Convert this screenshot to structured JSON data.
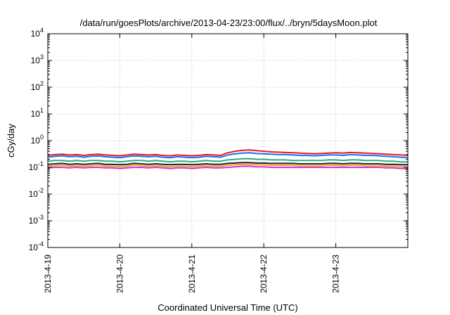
{
  "chart_data": {
    "type": "line",
    "title": "/data/run/goesPlots/archive/2013-04-23/23:00/flux/../bryn/5daysMoon.plot",
    "xlabel": "Coordinated Universal Time (UTC)",
    "ylabel": "cGy/day",
    "yscale": "log",
    "ylim": [
      0.0001,
      10000
    ],
    "xlim": [
      0,
      5
    ],
    "x_ticks": [
      {
        "value": 0,
        "label": "2013-4-19"
      },
      {
        "value": 1,
        "label": "2013-4-20"
      },
      {
        "value": 2,
        "label": "2013-4-21"
      },
      {
        "value": 3,
        "label": "2013-4-22"
      },
      {
        "value": 4,
        "label": "2013-4-23"
      }
    ],
    "y_ticks": [
      {
        "value": 0.0001,
        "base": "10",
        "exp": "-4"
      },
      {
        "value": 0.001,
        "base": "10",
        "exp": "-3"
      },
      {
        "value": 0.01,
        "base": "10",
        "exp": "-2"
      },
      {
        "value": 0.1,
        "base": "10",
        "exp": "-1"
      },
      {
        "value": 1,
        "base": "10",
        "exp": "0"
      },
      {
        "value": 10,
        "base": "10",
        "exp": "1"
      },
      {
        "value": 100,
        "base": "10",
        "exp": "2"
      },
      {
        "value": 1000,
        "base": "10",
        "exp": "3"
      },
      {
        "value": 10000,
        "base": "10",
        "exp": "4"
      }
    ],
    "grid": true,
    "x": [
      0,
      0.1,
      0.2,
      0.3,
      0.4,
      0.5,
      0.6,
      0.7,
      0.8,
      0.9,
      1.0,
      1.1,
      1.2,
      1.3,
      1.4,
      1.5,
      1.6,
      1.7,
      1.8,
      1.9,
      2.0,
      2.1,
      2.2,
      2.3,
      2.4,
      2.5,
      2.6,
      2.7,
      2.8,
      2.9,
      3.0,
      3.1,
      3.2,
      3.3,
      3.4,
      3.5,
      3.6,
      3.7,
      3.8,
      3.9,
      4.0,
      4.1,
      4.2,
      4.3,
      4.4,
      4.5,
      4.6,
      4.7,
      4.8,
      4.9,
      5.0
    ],
    "series": [
      {
        "color": "#e41a1c",
        "values": [
          0.28,
          0.3,
          0.31,
          0.29,
          0.3,
          0.28,
          0.3,
          0.31,
          0.29,
          0.28,
          0.27,
          0.29,
          0.31,
          0.3,
          0.29,
          0.3,
          0.28,
          0.27,
          0.29,
          0.28,
          0.27,
          0.28,
          0.3,
          0.29,
          0.28,
          0.35,
          0.4,
          0.43,
          0.45,
          0.42,
          0.4,
          0.38,
          0.37,
          0.36,
          0.35,
          0.34,
          0.33,
          0.32,
          0.33,
          0.34,
          0.35,
          0.34,
          0.36,
          0.35,
          0.34,
          0.33,
          0.32,
          0.31,
          0.3,
          0.29,
          0.28
        ]
      },
      {
        "color": "#1f6fe8",
        "values": [
          0.24,
          0.26,
          0.27,
          0.25,
          0.26,
          0.24,
          0.26,
          0.27,
          0.25,
          0.24,
          0.23,
          0.25,
          0.27,
          0.26,
          0.25,
          0.26,
          0.24,
          0.23,
          0.25,
          0.24,
          0.23,
          0.24,
          0.26,
          0.25,
          0.24,
          0.29,
          0.32,
          0.34,
          0.35,
          0.33,
          0.32,
          0.31,
          0.3,
          0.3,
          0.29,
          0.28,
          0.28,
          0.27,
          0.28,
          0.29,
          0.29,
          0.28,
          0.3,
          0.29,
          0.28,
          0.28,
          0.27,
          0.26,
          0.25,
          0.24,
          0.23
        ]
      },
      {
        "color": "#2ab07f",
        "values": [
          0.17,
          0.18,
          0.18,
          0.17,
          0.18,
          0.17,
          0.18,
          0.18,
          0.17,
          0.17,
          0.16,
          0.17,
          0.18,
          0.18,
          0.17,
          0.18,
          0.17,
          0.16,
          0.17,
          0.17,
          0.16,
          0.17,
          0.18,
          0.17,
          0.17,
          0.19,
          0.2,
          0.21,
          0.21,
          0.2,
          0.2,
          0.19,
          0.19,
          0.19,
          0.18,
          0.18,
          0.18,
          0.18,
          0.18,
          0.19,
          0.19,
          0.18,
          0.19,
          0.19,
          0.18,
          0.18,
          0.18,
          0.17,
          0.17,
          0.16,
          0.16
        ]
      },
      {
        "color": "#222222",
        "values": [
          0.13,
          0.135,
          0.14,
          0.13,
          0.135,
          0.13,
          0.135,
          0.14,
          0.13,
          0.13,
          0.125,
          0.13,
          0.14,
          0.135,
          0.13,
          0.135,
          0.13,
          0.125,
          0.13,
          0.13,
          0.125,
          0.13,
          0.135,
          0.13,
          0.13,
          0.14,
          0.145,
          0.15,
          0.15,
          0.145,
          0.145,
          0.14,
          0.14,
          0.14,
          0.14,
          0.135,
          0.135,
          0.135,
          0.135,
          0.14,
          0.14,
          0.135,
          0.14,
          0.14,
          0.135,
          0.135,
          0.135,
          0.13,
          0.13,
          0.125,
          0.125
        ]
      },
      {
        "color": "#f2a03a",
        "values": [
          0.11,
          0.115,
          0.12,
          0.11,
          0.115,
          0.11,
          0.115,
          0.12,
          0.11,
          0.11,
          0.105,
          0.11,
          0.12,
          0.115,
          0.11,
          0.115,
          0.11,
          0.105,
          0.11,
          0.11,
          0.105,
          0.11,
          0.115,
          0.11,
          0.11,
          0.12,
          0.125,
          0.13,
          0.13,
          0.125,
          0.125,
          0.12,
          0.12,
          0.12,
          0.12,
          0.115,
          0.115,
          0.115,
          0.115,
          0.12,
          0.12,
          0.115,
          0.12,
          0.12,
          0.115,
          0.115,
          0.115,
          0.11,
          0.11,
          0.105,
          0.105
        ]
      },
      {
        "color": "#e030d0",
        "values": [
          0.095,
          0.1,
          0.1,
          0.095,
          0.1,
          0.095,
          0.1,
          0.1,
          0.095,
          0.095,
          0.09,
          0.095,
          0.1,
          0.1,
          0.095,
          0.1,
          0.095,
          0.09,
          0.095,
          0.095,
          0.09,
          0.095,
          0.1,
          0.095,
          0.095,
          0.1,
          0.105,
          0.11,
          0.11,
          0.105,
          0.105,
          0.1,
          0.1,
          0.1,
          0.1,
          0.1,
          0.1,
          0.1,
          0.1,
          0.1,
          0.1,
          0.1,
          0.1,
          0.1,
          0.1,
          0.1,
          0.1,
          0.095,
          0.095,
          0.09,
          0.09
        ]
      }
    ]
  }
}
